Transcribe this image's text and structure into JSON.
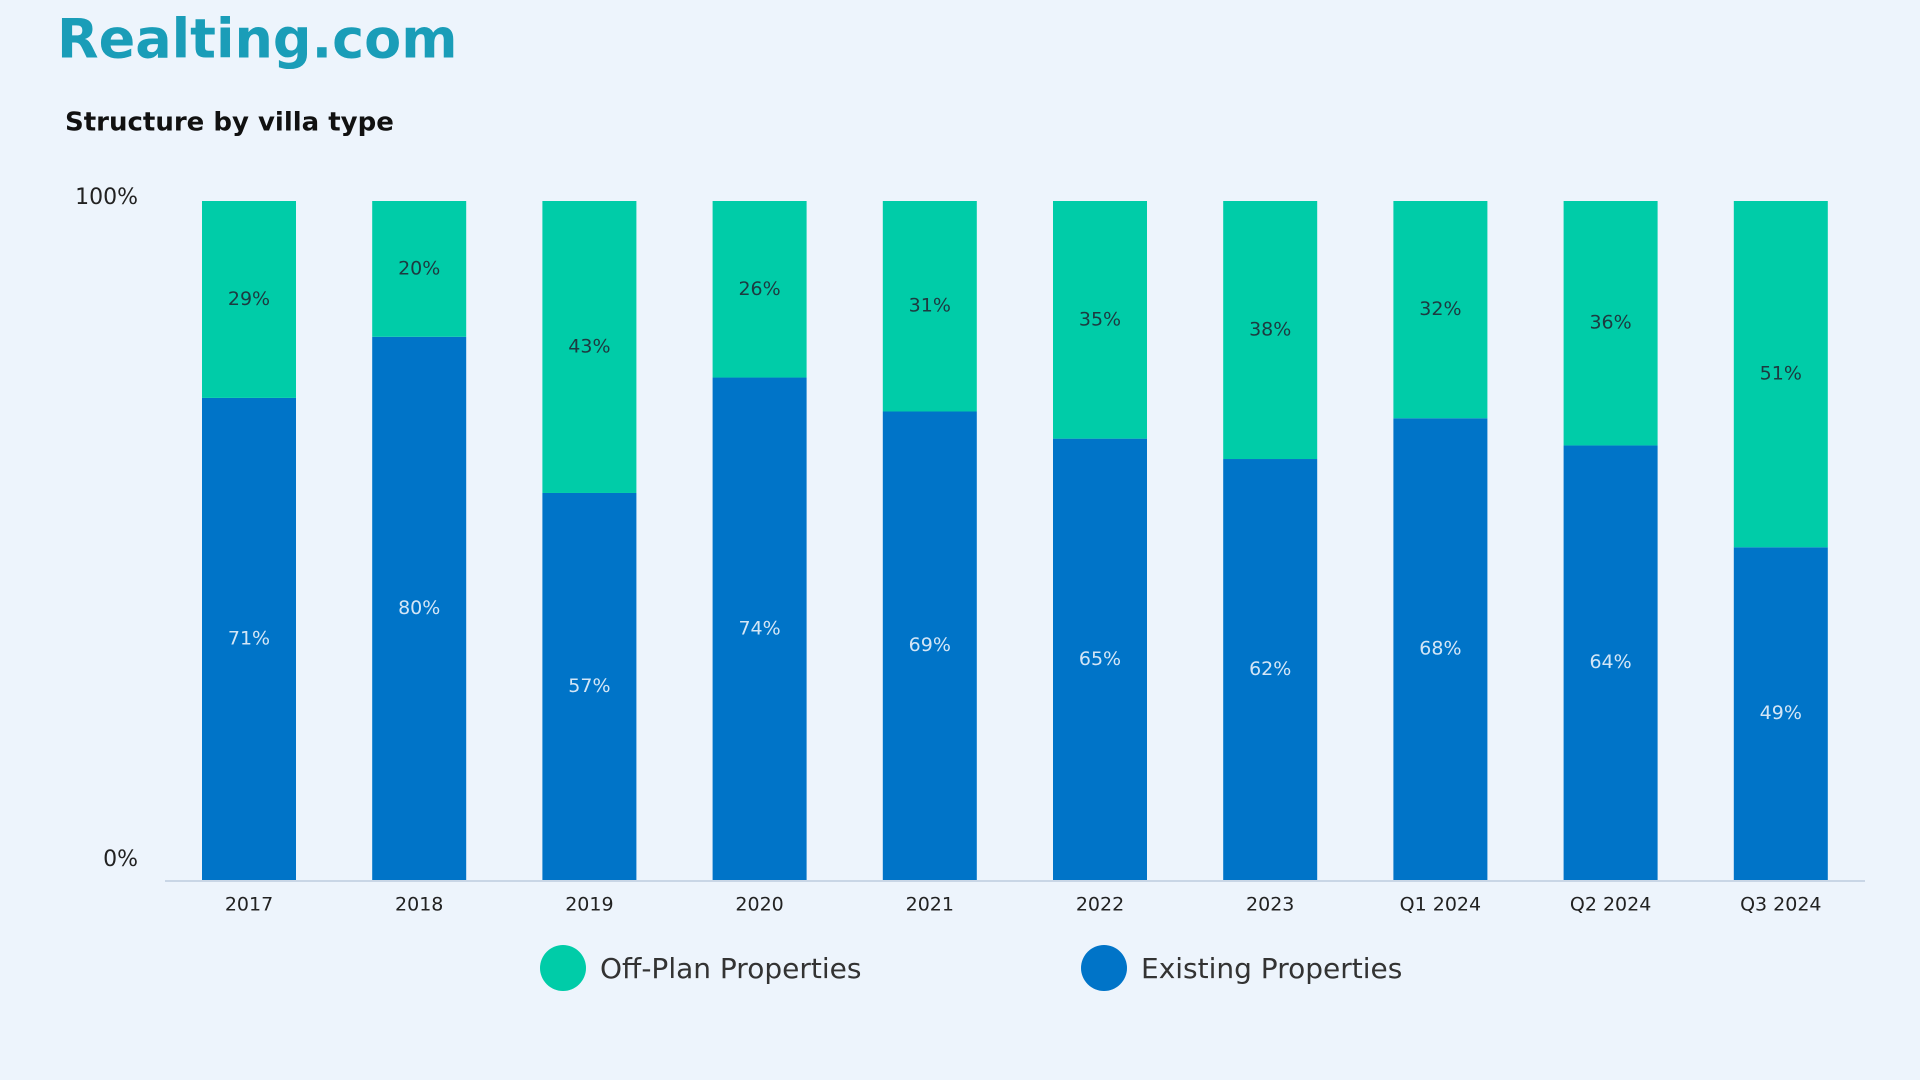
{
  "brand": "Realting.com",
  "chart_data": {
    "type": "stacked_bar",
    "title": "Structure by villa type",
    "categories": [
      "2017",
      "2018",
      "2019",
      "2020",
      "2021",
      "2022",
      "2023",
      "Q1 2024",
      "Q2 2024",
      "Q3 2024"
    ],
    "series": [
      {
        "name": "Off-Plan Properties",
        "color": "#00cca8",
        "values": [
          29,
          20,
          43,
          26,
          31,
          35,
          38,
          32,
          36,
          51
        ],
        "value_labels": [
          "29%",
          "20%",
          "43%",
          "26%",
          "31%",
          "35%",
          "38%",
          "32%",
          "36%",
          "51%"
        ]
      },
      {
        "name": "Existing Properties",
        "color": "#0074c8",
        "values": [
          71,
          80,
          57,
          74,
          69,
          65,
          62,
          68,
          64,
          49
        ],
        "value_labels": [
          "71%",
          "80%",
          "57%",
          "74%",
          "69%",
          "65%",
          "62%",
          "68%",
          "64%",
          "49%"
        ]
      }
    ],
    "ylim": [
      0,
      100
    ],
    "yticks": [
      {
        "value": 0,
        "label": "0%"
      },
      {
        "value": 100,
        "label": "100%"
      }
    ],
    "grid": false,
    "legend": "bottom"
  }
}
